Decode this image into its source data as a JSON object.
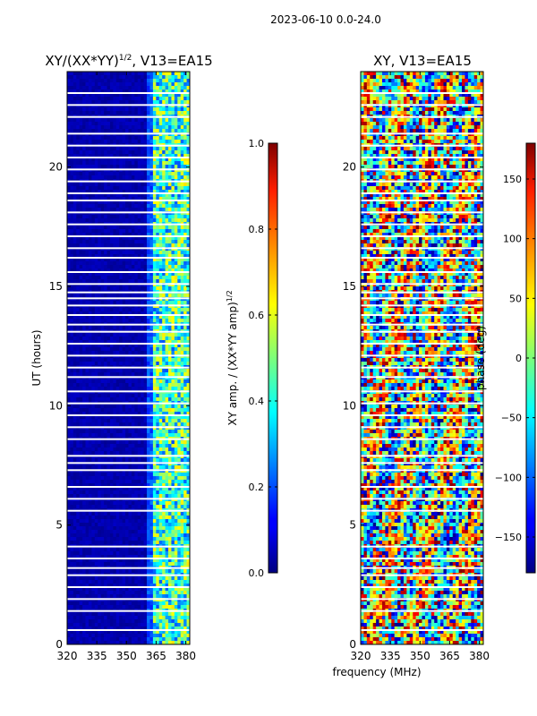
{
  "figure": {
    "suptitle": "2023-06-10 0.0-24.0",
    "xlabel": "frequency (MHz)"
  },
  "chart_data": [
    {
      "type": "heatmap",
      "title_main": "XY/(XX*YY)",
      "title_sup": "1/2",
      "title_rest": ", V13=EA15",
      "xlim": [
        320,
        382
      ],
      "ylim": [
        0,
        24
      ],
      "xticks": [
        320,
        335,
        350,
        365,
        380
      ],
      "yticks": [
        0,
        5,
        10,
        15,
        20
      ],
      "ylabel": "UT (hours)",
      "colorbar": {
        "range": [
          0.0,
          1.0
        ],
        "ticks": [
          0.0,
          0.2,
          0.4,
          0.6,
          0.8,
          1.0
        ],
        "tick_labels": [
          "0.0",
          "0.2",
          "0.4",
          "0.6",
          "0.8",
          "1.0"
        ],
        "label": "XY amp. / (XX*YY amp)^1/2",
        "label_main": "XY amp. / (XX*YY amp)",
        "label_sup": "1/2",
        "colormap": "jet"
      },
      "blank_rows_hours": [
        23.1,
        22.6,
        22.1,
        21.4,
        20.9,
        20.4,
        19.9,
        19.4,
        18.9,
        18.6,
        18.1,
        17.6,
        17.1,
        16.6,
        16.2,
        15.6,
        15.1,
        14.75,
        14.5,
        14.2,
        13.8,
        13.4,
        13.1,
        12.6,
        12.1,
        11.6,
        11.2,
        10.6,
        10.1,
        9.6,
        9.1,
        8.6,
        7.9,
        7.6,
        7.3,
        6.6,
        6.1,
        5.6,
        4.1,
        3.6,
        3.2,
        2.9,
        2.4,
        1.9,
        1.4,
        0.6
      ]
    },
    {
      "type": "heatmap",
      "title": "XY, V13=EA15",
      "xlim": [
        320,
        382
      ],
      "ylim": [
        0,
        24
      ],
      "xticks": [
        320,
        335,
        350,
        365,
        380
      ],
      "yticks": [
        0,
        5,
        10,
        15,
        20
      ],
      "colorbar": {
        "range": [
          -180,
          180
        ],
        "ticks": [
          -150,
          -100,
          -50,
          0,
          50,
          100,
          150
        ],
        "tick_labels": [
          "−150",
          "−100",
          "−50",
          "0",
          "50",
          "100",
          "150"
        ],
        "label": "phase (deg)",
        "colormap": "jet"
      },
      "blank_rows_hours": [
        23.1,
        22.6,
        22.1,
        21.4,
        20.9,
        20.4,
        19.9,
        19.4,
        18.9,
        18.6,
        18.1,
        17.6,
        17.1,
        16.6,
        16.2,
        15.6,
        15.1,
        14.75,
        14.5,
        14.2,
        13.8,
        13.4,
        13.1,
        12.6,
        12.1,
        11.6,
        11.2,
        10.6,
        10.1,
        9.6,
        9.1,
        8.6,
        7.9,
        7.6,
        7.3,
        6.6,
        6.1,
        5.6,
        4.1,
        3.6,
        3.2,
        2.9,
        2.4,
        1.9,
        1.4,
        0.6
      ]
    }
  ]
}
